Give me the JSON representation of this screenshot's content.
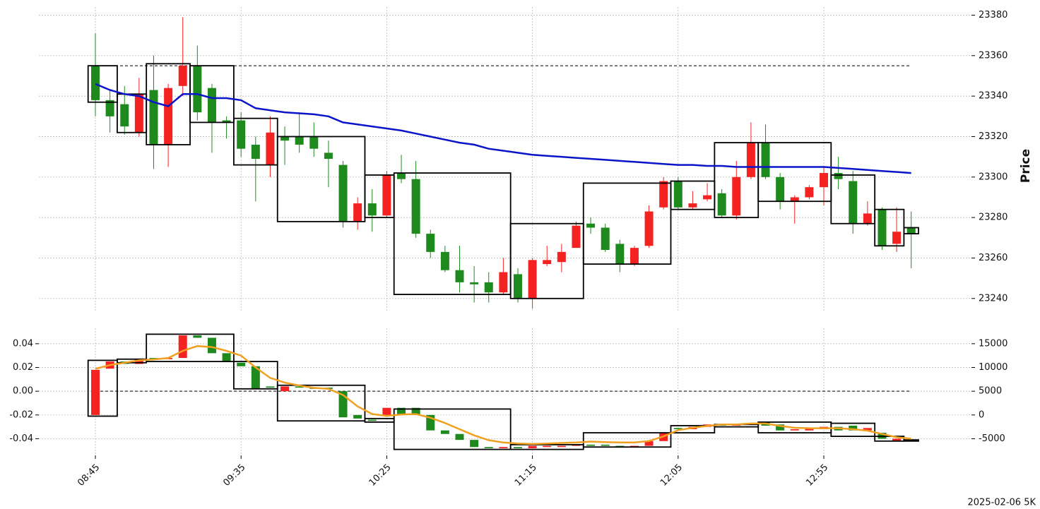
{
  "chart_data": [
    {
      "type": "candlestick",
      "ylabel": "Price",
      "categories": [
        "08:45",
        null,
        null,
        null,
        null,
        null,
        null,
        null,
        null,
        null,
        "09:35",
        null,
        null,
        null,
        null,
        null,
        null,
        null,
        null,
        null,
        "10:25",
        null,
        null,
        null,
        null,
        null,
        null,
        null,
        null,
        null,
        "11:15",
        null,
        null,
        null,
        null,
        null,
        null,
        null,
        null,
        null,
        "12:05",
        null,
        null,
        null,
        null,
        null,
        null,
        null,
        null,
        null,
        "12:55",
        null,
        null,
        null,
        null,
        null,
        null
      ],
      "open": [
        23355,
        23338,
        23336,
        23322,
        23343,
        23316,
        23345,
        23355,
        23344,
        23328,
        23328,
        23316,
        23306,
        23320,
        23320,
        23320,
        23312,
        23306,
        23278,
        23287,
        23281,
        23302,
        23299,
        23272,
        23263,
        23254,
        23248,
        23248,
        23243,
        23252,
        23240,
        23257,
        23258,
        23265,
        23277,
        23275,
        23267,
        23257,
        23266,
        23285,
        23298,
        23285,
        23289,
        23292,
        23281,
        23300,
        23317,
        23300,
        23288,
        23290,
        23295,
        23302,
        23298,
        23277,
        23284,
        23267,
        23275
      ],
      "high": [
        23371,
        23343,
        23345,
        23349,
        23360,
        23346,
        23379,
        23365,
        23346,
        23330,
        23332,
        23320,
        23330,
        23325,
        23332,
        23327,
        23318,
        23308,
        23290,
        23294,
        23303,
        23311,
        23308,
        23274,
        23266,
        23266,
        23256,
        23253,
        23260,
        23255,
        23260,
        23266,
        23267,
        23278,
        23280,
        23277,
        23269,
        23266,
        23286,
        23300,
        23300,
        23293,
        23297,
        23294,
        23308,
        23327,
        23326,
        23302,
        23291,
        23296,
        23305,
        23310,
        23303,
        23288,
        23285,
        23285,
        23283
      ],
      "low": [
        23330,
        23322,
        23321,
        23320,
        23304,
        23305,
        23340,
        23328,
        23312,
        23319,
        23310,
        23288,
        23300,
        23306,
        23312,
        23310,
        23295,
        23275,
        23274,
        23273,
        23280,
        23297,
        23270,
        23260,
        23253,
        23243,
        23238,
        23238,
        23242,
        23238,
        23235,
        23256,
        23253,
        23265,
        23272,
        23263,
        23253,
        23256,
        23265,
        23284,
        23284,
        23284,
        23288,
        23280,
        23279,
        23299,
        23299,
        23284,
        23277,
        23289,
        23286,
        23294,
        23272,
        23276,
        23264,
        23263,
        23255
      ],
      "close": [
        23338,
        23330,
        23325,
        23341,
        23316,
        23344,
        23355,
        23332,
        23327,
        23327,
        23314,
        23309,
        23322,
        23318,
        23316,
        23314,
        23309,
        23278,
        23287,
        23281,
        23301,
        23299,
        23272,
        23263,
        23254,
        23248,
        23247,
        23243,
        23253,
        23240,
        23259,
        23259,
        23263,
        23276,
        23275,
        23264,
        23257,
        23265,
        23283,
        23298,
        23285,
        23287,
        23291,
        23281,
        23300,
        23317,
        23300,
        23288,
        23290,
        23295,
        23302,
        23299,
        23277,
        23282,
        23266,
        23273,
        23272
      ],
      "up_color": "#f52222",
      "down_color": "#1e8a1e",
      "line": {
        "color": "#0a14c8",
        "values": [
          23346,
          23343,
          23341,
          23340,
          23337,
          23335,
          23341,
          23341,
          23339,
          23339,
          23338,
          23334,
          23333,
          23332,
          23331.5,
          23331,
          23330,
          23327,
          23326,
          23325,
          23324,
          23323,
          23321.5,
          23320,
          23318.5,
          23317,
          23316,
          23314,
          23313,
          23312,
          23311,
          23310.5,
          23310,
          23309.5,
          23309,
          23308.5,
          23308,
          23307.5,
          23307,
          23306.5,
          23306,
          23306,
          23305.5,
          23305.5,
          23305,
          23305,
          23305,
          23305,
          23305,
          23305,
          23305,
          23304.5,
          23304,
          23303.5,
          23303,
          23302.5,
          23302
        ]
      },
      "boxes": [
        {
          "start": 0,
          "end": 2,
          "top": 23355,
          "bottom": 23337
        },
        {
          "start": 2,
          "end": 4,
          "top": 23341,
          "bottom": 23322
        },
        {
          "start": 4,
          "end": 7,
          "top": 23356,
          "bottom": 23316
        },
        {
          "start": 7,
          "end": 10,
          "top": 23355,
          "bottom": 23327
        },
        {
          "start": 10,
          "end": 13,
          "top": 23329,
          "bottom": 23306
        },
        {
          "start": 13,
          "end": 19,
          "top": 23320,
          "bottom": 23278
        },
        {
          "start": 19,
          "end": 21,
          "top": 23301,
          "bottom": 23280
        },
        {
          "start": 21,
          "end": 29,
          "top": 23302,
          "bottom": 23242
        },
        {
          "start": 29,
          "end": 34,
          "top": 23277,
          "bottom": 23240
        },
        {
          "start": 34,
          "end": 40,
          "top": 23297,
          "bottom": 23257
        },
        {
          "start": 40,
          "end": 43,
          "top": 23298,
          "bottom": 23284
        },
        {
          "start": 43,
          "end": 46,
          "top": 23317,
          "bottom": 23280
        },
        {
          "start": 46,
          "end": 51,
          "top": 23317,
          "bottom": 23288
        },
        {
          "start": 51,
          "end": 54,
          "top": 23301,
          "bottom": 23277
        },
        {
          "start": 54,
          "end": 56,
          "top": 23284,
          "bottom": 23266
        },
        {
          "start": 56,
          "end": 57,
          "top": 23275,
          "bottom": 23272
        }
      ],
      "hline": 23355,
      "ylim": [
        23234,
        23384
      ],
      "yticks": [
        23240,
        23260,
        23280,
        23300,
        23320,
        23340,
        23360,
        23380
      ],
      "grid": true
    },
    {
      "type": "candlestick",
      "open": [
        -0.02,
        0.019,
        0.025,
        0.023,
        0.028,
        0.027,
        0.028,
        0.047,
        0.045,
        0.032,
        0.024,
        0.021,
        0.004,
        0.0,
        0.004,
        0.003,
        0.003,
        0.0,
        -0.02,
        -0.024,
        -0.02,
        -0.014,
        -0.014,
        -0.02,
        -0.033,
        -0.036,
        -0.041,
        -0.047,
        -0.048,
        -0.047,
        -0.048,
        -0.047,
        -0.047,
        -0.046,
        -0.045,
        -0.045,
        -0.046,
        -0.047,
        -0.046,
        -0.042,
        -0.031,
        -0.032,
        -0.03,
        -0.028,
        -0.029,
        -0.028,
        -0.026,
        -0.028,
        -0.033,
        -0.033,
        -0.032,
        -0.03,
        -0.029,
        -0.033,
        -0.035,
        -0.042,
        -0.041
      ],
      "close": [
        0.018,
        0.025,
        0.023,
        0.027,
        0.027,
        0.028,
        0.047,
        0.045,
        0.032,
        0.025,
        0.021,
        0.002,
        0.003,
        0.004,
        0.003,
        0.002,
        0.002,
        -0.022,
        -0.023,
        -0.025,
        -0.014,
        -0.02,
        -0.02,
        -0.033,
        -0.036,
        -0.041,
        -0.047,
        -0.048,
        -0.047,
        -0.048,
        -0.046,
        -0.046,
        -0.046,
        -0.045,
        -0.046,
        -0.046,
        -0.047,
        -0.046,
        -0.042,
        -0.035,
        -0.032,
        -0.03,
        -0.028,
        -0.029,
        -0.028,
        -0.027,
        -0.029,
        -0.033,
        -0.032,
        -0.031,
        -0.03,
        -0.033,
        -0.033,
        -0.031,
        -0.04,
        -0.04,
        -0.042
      ],
      "up_color": "#f52222",
      "down_color": "#1e8a1e",
      "line": {
        "color": "#f0a020",
        "axis": "y2",
        "values": [
          9700,
          10500,
          11000,
          11500,
          11700,
          12000,
          13500,
          14500,
          14300,
          13500,
          12500,
          10000,
          7800,
          6800,
          6200,
          5700,
          5500,
          4200,
          1800,
          200,
          -200,
          100,
          200,
          -600,
          -1700,
          -3000,
          -4300,
          -5300,
          -5800,
          -6000,
          -6100,
          -6000,
          -5900,
          -5800,
          -5600,
          -5700,
          -5800,
          -5800,
          -5500,
          -4500,
          -3200,
          -2700,
          -2300,
          -2000,
          -2000,
          -1800,
          -1800,
          -2300,
          -2700,
          -2800,
          -2800,
          -2800,
          -3000,
          -3300,
          -4000,
          -4700,
          -5000
        ]
      },
      "boxes": [
        {
          "start": 0,
          "end": 2,
          "top": 0.026,
          "bottom": -0.021
        },
        {
          "start": 2,
          "end": 4,
          "top": 0.027,
          "bottom": 0.024
        },
        {
          "start": 4,
          "end": 10,
          "top": 0.048,
          "bottom": 0.025
        },
        {
          "start": 10,
          "end": 13,
          "top": 0.025,
          "bottom": 0.002
        },
        {
          "start": 13,
          "end": 19,
          "top": 0.005,
          "bottom": -0.025
        },
        {
          "start": 19,
          "end": 21,
          "top": -0.023,
          "bottom": -0.026
        },
        {
          "start": 21,
          "end": 29,
          "top": -0.015,
          "bottom": -0.049
        },
        {
          "start": 29,
          "end": 34,
          "top": -0.045,
          "bottom": -0.049
        },
        {
          "start": 34,
          "end": 40,
          "top": -0.035,
          "bottom": -0.047
        },
        {
          "start": 40,
          "end": 43,
          "top": -0.029,
          "bottom": -0.035
        },
        {
          "start": 43,
          "end": 46,
          "top": -0.028,
          "bottom": -0.03
        },
        {
          "start": 46,
          "end": 51,
          "top": -0.026,
          "bottom": -0.035
        },
        {
          "start": 51,
          "end": 54,
          "top": -0.027,
          "bottom": -0.038
        },
        {
          "start": 54,
          "end": 56,
          "top": -0.038,
          "bottom": -0.042
        },
        {
          "start": 56,
          "end": 57,
          "top": -0.041,
          "bottom": -0.042
        }
      ],
      "hline": 0,
      "ylim": [
        -0.054,
        0.053
      ],
      "yticks": [
        -0.04,
        -0.02,
        {
          "value": 0,
          "label": "0.00"
        },
        0.02,
        0.04
      ],
      "y2lim": [
        -8500,
        18250
      ],
      "y2ticks": [
        -5000,
        0,
        5000,
        10000,
        15000
      ],
      "grid": true
    }
  ],
  "footer": "2025-02-06 5K"
}
